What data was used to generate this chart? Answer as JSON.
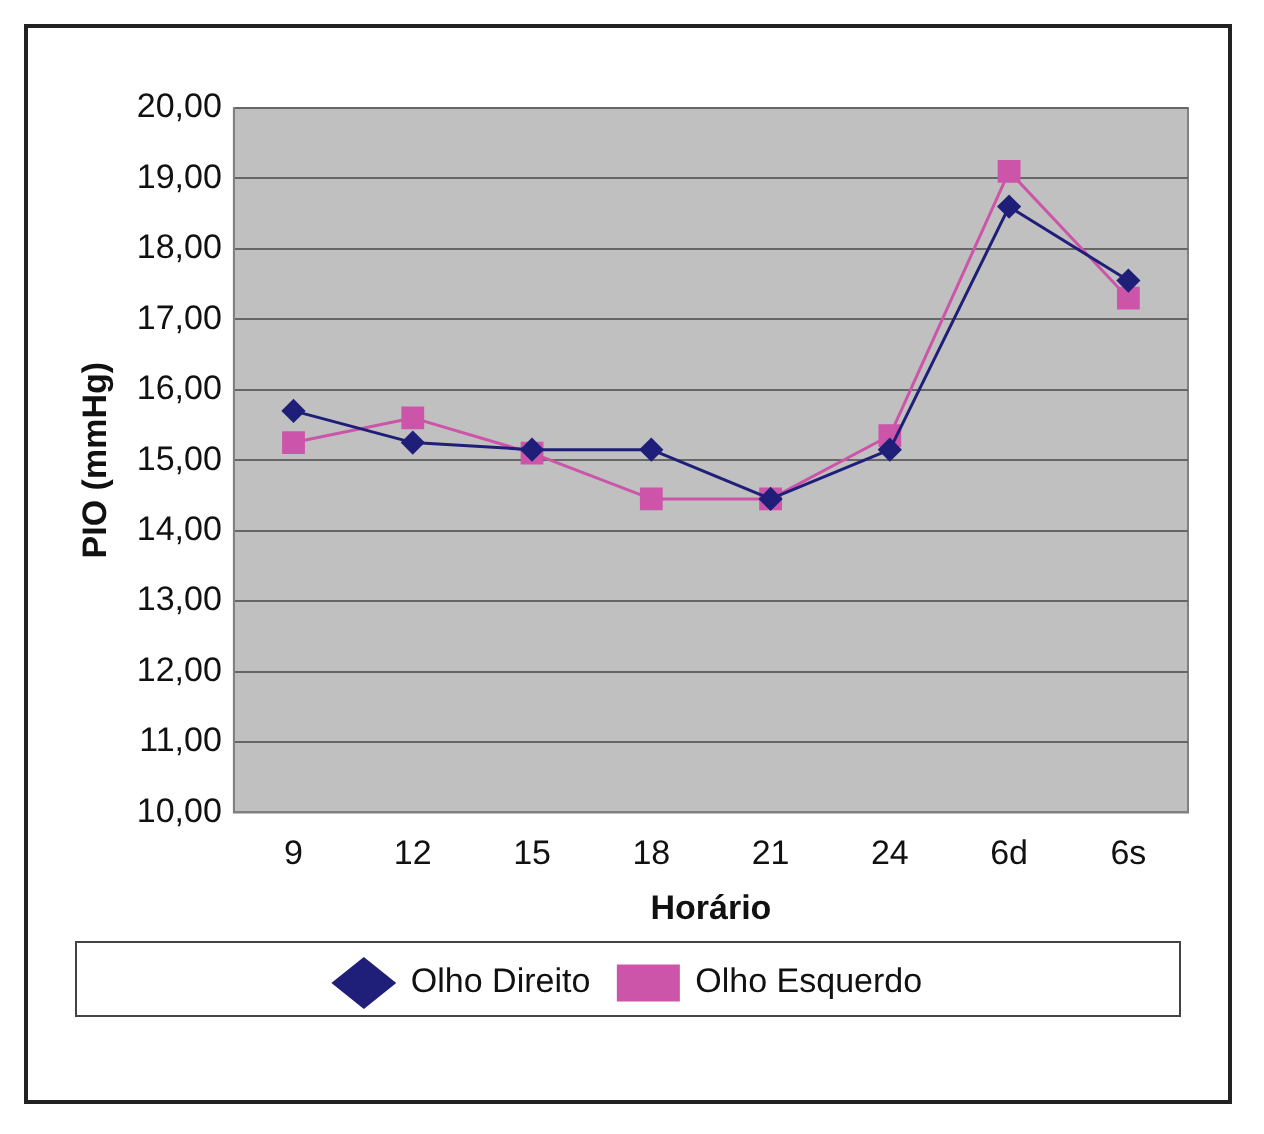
{
  "chart_data": {
    "type": "line",
    "xlabel": "Horário",
    "ylabel": "PIO (mmHg)",
    "categories": [
      "9",
      "12",
      "15",
      "18",
      "21",
      "24",
      "6d",
      "6s"
    ],
    "series": [
      {
        "name": "Olho Direito",
        "color": "#1f1f7a",
        "marker": "diamond",
        "values": [
          15.7,
          15.25,
          15.15,
          15.15,
          14.45,
          15.15,
          18.6,
          17.55
        ]
      },
      {
        "name": "Olho Esquerdo",
        "color": "#cc55aa",
        "marker": "square",
        "values": [
          15.25,
          15.6,
          15.1,
          14.45,
          14.45,
          15.35,
          19.1,
          17.3
        ]
      }
    ],
    "ylim": [
      10,
      20
    ],
    "yticks": [
      {
        "value": 10,
        "label": "10,00"
      },
      {
        "value": 11,
        "label": "11,00"
      },
      {
        "value": 12,
        "label": "12,00"
      },
      {
        "value": 13,
        "label": "13,00"
      },
      {
        "value": 14,
        "label": "14,00"
      },
      {
        "value": 15,
        "label": "15,00"
      },
      {
        "value": 16,
        "label": "16,00"
      },
      {
        "value": 17,
        "label": "17,00"
      },
      {
        "value": 18,
        "label": "18,00"
      },
      {
        "value": 19,
        "label": "19,00"
      },
      {
        "value": 20,
        "label": "20,00"
      }
    ],
    "grid": "y",
    "legend": "bottom",
    "line_style": "solid"
  }
}
